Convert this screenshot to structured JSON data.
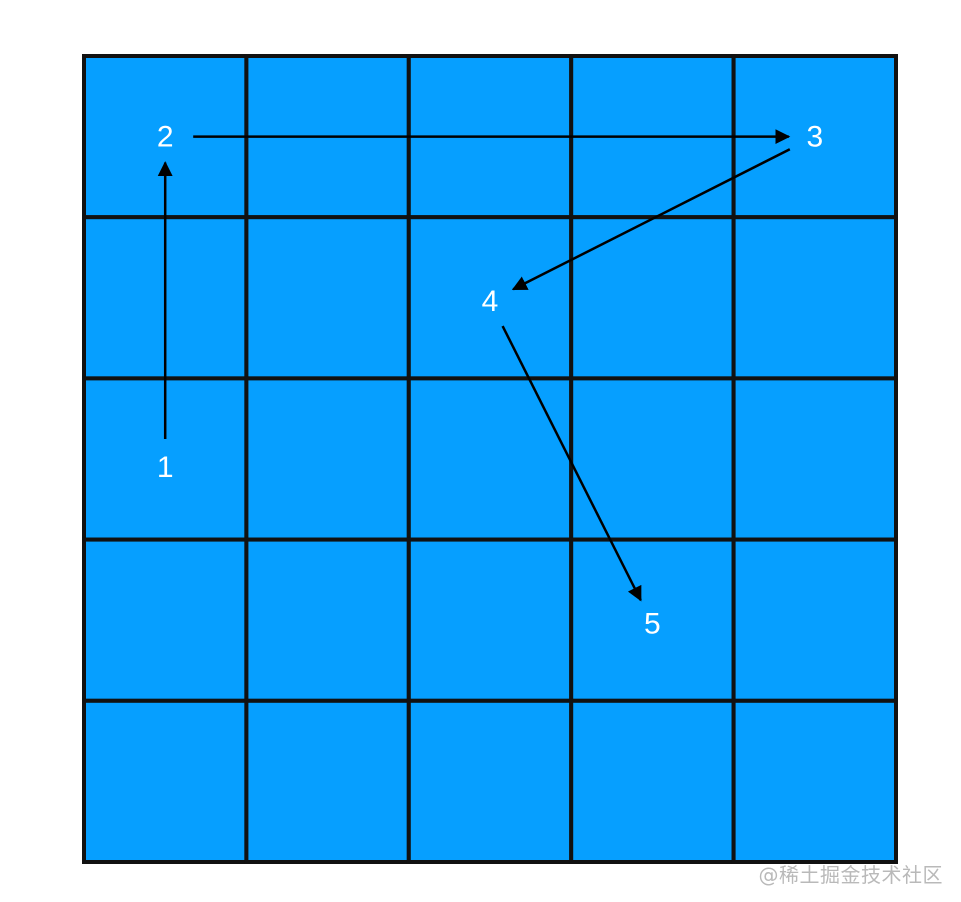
{
  "grid": {
    "rows": 5,
    "cols": 5,
    "cell_color": "#069fff",
    "line_color": "#111111"
  },
  "labels": [
    {
      "text": "1",
      "row": 2,
      "col": 0
    },
    {
      "text": "2",
      "row": 0,
      "col": 0
    },
    {
      "text": "3",
      "row": 0,
      "col": 4
    },
    {
      "text": "4",
      "row": 1,
      "col": 2
    },
    {
      "text": "5",
      "row": 3,
      "col": 3
    }
  ],
  "path": [
    "1",
    "2",
    "3",
    "4",
    "5"
  ],
  "arrow_color": "#000000",
  "watermark": "@稀土掘金技术社区"
}
